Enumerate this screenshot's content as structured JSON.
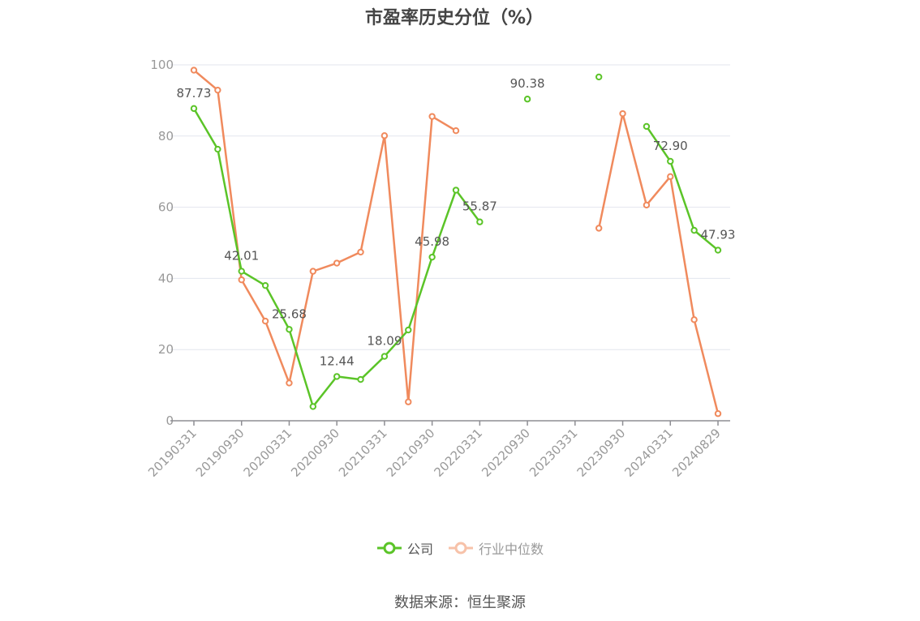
{
  "chart_data": {
    "type": "line",
    "title": "市盈率历史分位（%）",
    "xlabel": "",
    "ylabel": "",
    "ylim": [
      0,
      100
    ],
    "yticks": [
      0,
      20,
      40,
      60,
      80,
      100
    ],
    "grid": true,
    "legend_position": "bottom",
    "x": [
      "20190331",
      "20190630",
      "20190930",
      "20191231",
      "20200331",
      "20200630",
      "20200930",
      "20201231",
      "20210331",
      "20210630",
      "20210930",
      "20211231",
      "20220331",
      "20220630",
      "20220930",
      "20221231",
      "20230331",
      "20230630",
      "20230930",
      "20231231",
      "20240331",
      "20240630",
      "20240829"
    ],
    "x_tick_labels": [
      "20190331",
      "20190930",
      "20200331",
      "20200930",
      "20210331",
      "20210930",
      "20220331",
      "20220930",
      "20230331",
      "20230930",
      "20240331",
      "20240829"
    ],
    "series": [
      {
        "name": "公司",
        "color": "#5bc428",
        "values": [
          87.73,
          76.3,
          42.01,
          38.0,
          25.68,
          4.0,
          12.44,
          11.6,
          18.09,
          25.5,
          45.98,
          64.8,
          55.87,
          null,
          90.38,
          null,
          null,
          96.6,
          null,
          82.7,
          72.9,
          53.5,
          47.93
        ],
        "labels": [
          "87.73",
          null,
          "42.01",
          null,
          "25.68",
          null,
          "12.44",
          null,
          "18.09",
          null,
          "45.98",
          null,
          "55.87",
          null,
          "90.38",
          null,
          null,
          null,
          null,
          null,
          "72.90",
          null,
          "47.93"
        ]
      },
      {
        "name": "行业中位数",
        "color": "#f08a5d",
        "values": [
          98.5,
          92.9,
          39.6,
          28.0,
          10.6,
          42.0,
          44.3,
          47.4,
          80.1,
          5.3,
          85.5,
          81.5,
          null,
          null,
          null,
          null,
          null,
          54.1,
          86.3,
          60.6,
          68.6,
          28.4,
          2.0
        ]
      }
    ]
  },
  "footer": {
    "source": "数据来源：恒生聚源"
  }
}
